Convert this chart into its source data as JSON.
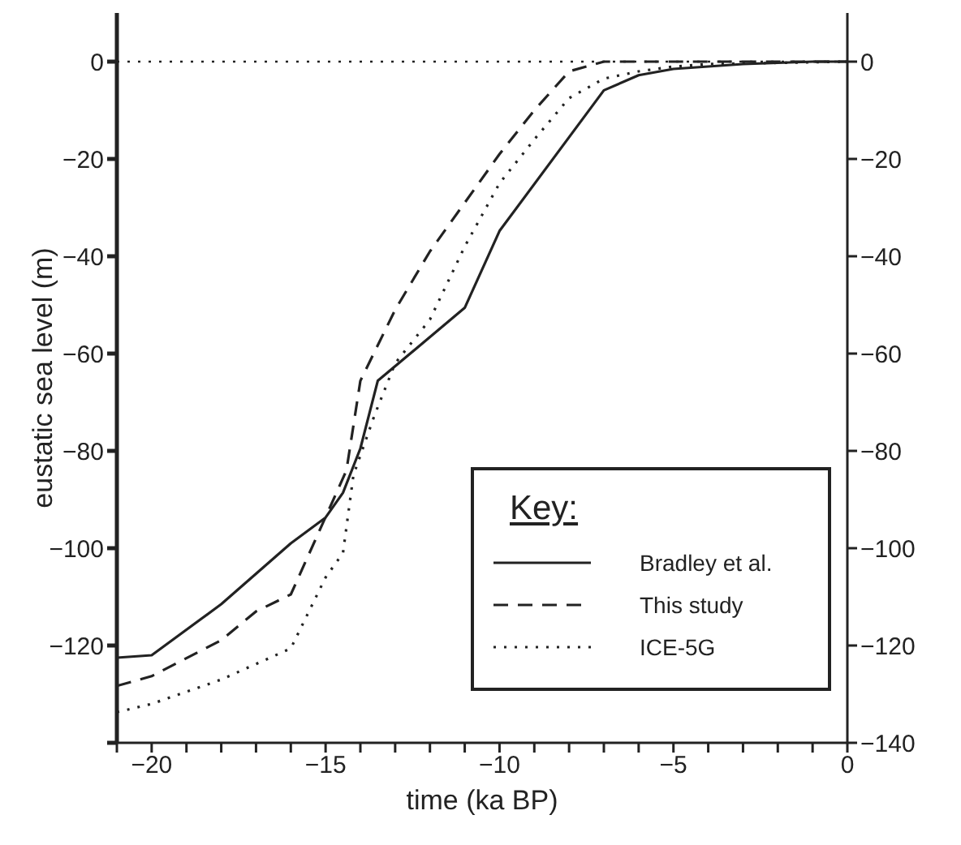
{
  "chart_data": {
    "type": "line",
    "xlabel": "time (ka BP)",
    "ylabel": "eustatic sea level (m)",
    "legend_title": "Key:",
    "legend": "bottom right",
    "grid": false,
    "marker": "none",
    "xlim": [
      -21,
      0
    ],
    "xticks": [
      {
        "value": -21,
        "label": null
      },
      -20,
      {
        "value": -19,
        "label": null
      },
      {
        "value": -18,
        "label": null
      },
      {
        "value": -17,
        "label": null
      },
      {
        "value": -16,
        "label": null
      },
      -15,
      {
        "value": -14,
        "label": null
      },
      {
        "value": -13,
        "label": null
      },
      {
        "value": -12,
        "label": null
      },
      {
        "value": -11,
        "label": null
      },
      -10,
      {
        "value": -9,
        "label": null
      },
      {
        "value": -8,
        "label": null
      },
      {
        "value": -7,
        "label": null
      },
      {
        "value": -6,
        "label": null
      },
      -5,
      {
        "value": -4,
        "label": null
      },
      {
        "value": -3,
        "label": null
      },
      {
        "value": -2,
        "label": null
      },
      {
        "value": -1,
        "label": null
      },
      0
    ],
    "ylim": [
      -140,
      10
    ],
    "yticks": [
      {
        "value": -140,
        "label": null
      },
      -120,
      -100,
      -80,
      -60,
      -40,
      -20,
      0
    ],
    "y2lim": [
      -140,
      10
    ],
    "y2ticks": [
      -140,
      -120,
      -100,
      -80,
      -60,
      -40,
      -20,
      0
    ],
    "ref_lines": [
      {
        "axis": "y",
        "value": 0,
        "line_style": "dotted",
        "color": "#222222"
      }
    ],
    "series": [
      {
        "name": "Bradley et al.",
        "color": "#222222",
        "line_style": "solid",
        "x": [
          -21,
          -20,
          -18,
          -16,
          -15,
          -14.5,
          -14,
          -13.5,
          -11,
          -10,
          -7,
          -6,
          -5,
          -3,
          -1,
          0
        ],
        "values": [
          -122.5,
          -122,
          -111.5,
          -99,
          -93.7,
          -88.6,
          -79.5,
          -65.6,
          -50.6,
          -34.8,
          -5.9,
          -2.8,
          -1.5,
          -0.5,
          0,
          0
        ]
      },
      {
        "name": "This study",
        "color": "#222222",
        "line_style": "dashed",
        "x": [
          -21,
          -20,
          -18,
          -17,
          -16,
          -15,
          -14.4,
          -14,
          -13,
          -12,
          -11,
          -10,
          -9,
          -8,
          -7,
          0
        ],
        "values": [
          -128.3,
          -126.3,
          -118.9,
          -113,
          -109.5,
          -93.6,
          -84,
          -65.6,
          -51,
          -39,
          -29,
          -19,
          -10,
          -2,
          0,
          0
        ]
      },
      {
        "name": "ICE-5G",
        "color": "#222222",
        "line_style": "dotted",
        "x": [
          -21,
          -20,
          -18,
          -16,
          -15,
          -14.5,
          -14.2,
          -13.6,
          -13,
          -12,
          -11,
          -10,
          -9,
          -8,
          -7,
          -6,
          -5,
          -4,
          0
        ],
        "values": [
          -133.7,
          -132,
          -127,
          -120.6,
          -106,
          -101,
          -85,
          -72.8,
          -62,
          -53,
          -38,
          -25,
          -16,
          -7.5,
          -3.5,
          -2,
          -1,
          -0.5,
          0
        ]
      }
    ]
  }
}
